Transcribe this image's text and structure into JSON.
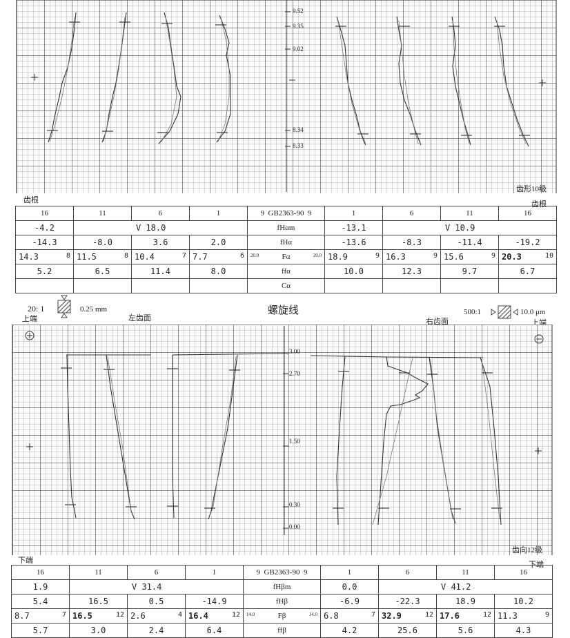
{
  "profile": {
    "corner_label": "齿形10级",
    "root_left": "齿根",
    "root_right": "齿根",
    "ticks": [
      "9.52",
      "9.35",
      "9.02",
      "8.34",
      "8.33"
    ],
    "columns": [
      "16",
      "11",
      "6",
      "1",
      "9",
      "GB2363-90",
      "9",
      "1",
      "6",
      "11",
      "16"
    ],
    "rows": [
      {
        "left": [
          "-4.2",
          "",
          "V 18.0",
          ""
        ],
        "param": "fHαm",
        "right": [
          "-13.1",
          "",
          "V 10.9",
          ""
        ]
      },
      {
        "left": [
          "-14.3",
          "-8.0",
          "3.6",
          "2.0"
        ],
        "param": "fHα",
        "right": [
          "-13.6",
          "-8.3",
          "-11.4",
          "-19.2"
        ]
      },
      {
        "left": [
          "14.3",
          "11.5",
          "10.4",
          "7.7"
        ],
        "left_grades": [
          "8",
          "8",
          "7",
          "6"
        ],
        "param_tol_left": "20.0",
        "param": "Fα",
        "param_tol_right": "20.0",
        "right": [
          "18.9",
          "16.3",
          "15.6",
          "20.3"
        ],
        "right_grades": [
          "9",
          "9",
          "9",
          "10"
        ]
      },
      {
        "left": [
          "5.2",
          "6.5",
          "11.4",
          "8.0"
        ],
        "param": "ffα",
        "right": [
          "10.0",
          "12.3",
          "9.7",
          "6.7"
        ]
      },
      {
        "left": [
          "",
          "",
          "",
          ""
        ],
        "param": "Cα",
        "right": [
          "",
          "",
          "",
          ""
        ]
      }
    ]
  },
  "lead": {
    "title": "螺旋线",
    "scale_left": "20: 1",
    "scale_left_mm": "0.25 mm",
    "scale_right": "500:1",
    "scale_right_um": "10.0 μm",
    "top_left": "上端",
    "top_right": "上端",
    "left_flank": "左齿面",
    "right_flank": "右齿面",
    "bottom_left": "下端",
    "bottom_right": "下端",
    "corner_label": "齿向12级",
    "ticks": [
      "3.00",
      "2.70",
      "1.50",
      "0.30",
      "0.00"
    ],
    "columns": [
      "16",
      "11",
      "6",
      "1",
      "9",
      "GB2363-90",
      "9",
      "1",
      "6",
      "11",
      "16"
    ],
    "rows": [
      {
        "left": [
          "1.9",
          "",
          "V 31.4",
          ""
        ],
        "param": "fHβm",
        "right": [
          "0.0",
          "",
          "V 41.2",
          ""
        ]
      },
      {
        "left": [
          "5.4",
          "16.5",
          "0.5",
          "-14.9"
        ],
        "param": "fHβ",
        "right": [
          "-6.9",
          "-22.3",
          "18.9",
          "10.2"
        ]
      },
      {
        "left": [
          "8.7",
          "16.5",
          "2.6",
          "16.4"
        ],
        "left_grades": [
          "7",
          "12",
          "4",
          "12"
        ],
        "param_tol_left": "14.0",
        "param": "Fβ",
        "param_tol_right": "14.0",
        "right": [
          "6.8",
          "32.9",
          "17.6",
          "11.3"
        ],
        "right_grades": [
          "7",
          "12",
          "12",
          "9"
        ]
      },
      {
        "left": [
          "5.7",
          "3.0",
          "2.4",
          "6.4"
        ],
        "param": "ffβ",
        "right": [
          "4.2",
          "25.6",
          "5.6",
          "4.3"
        ]
      }
    ]
  }
}
